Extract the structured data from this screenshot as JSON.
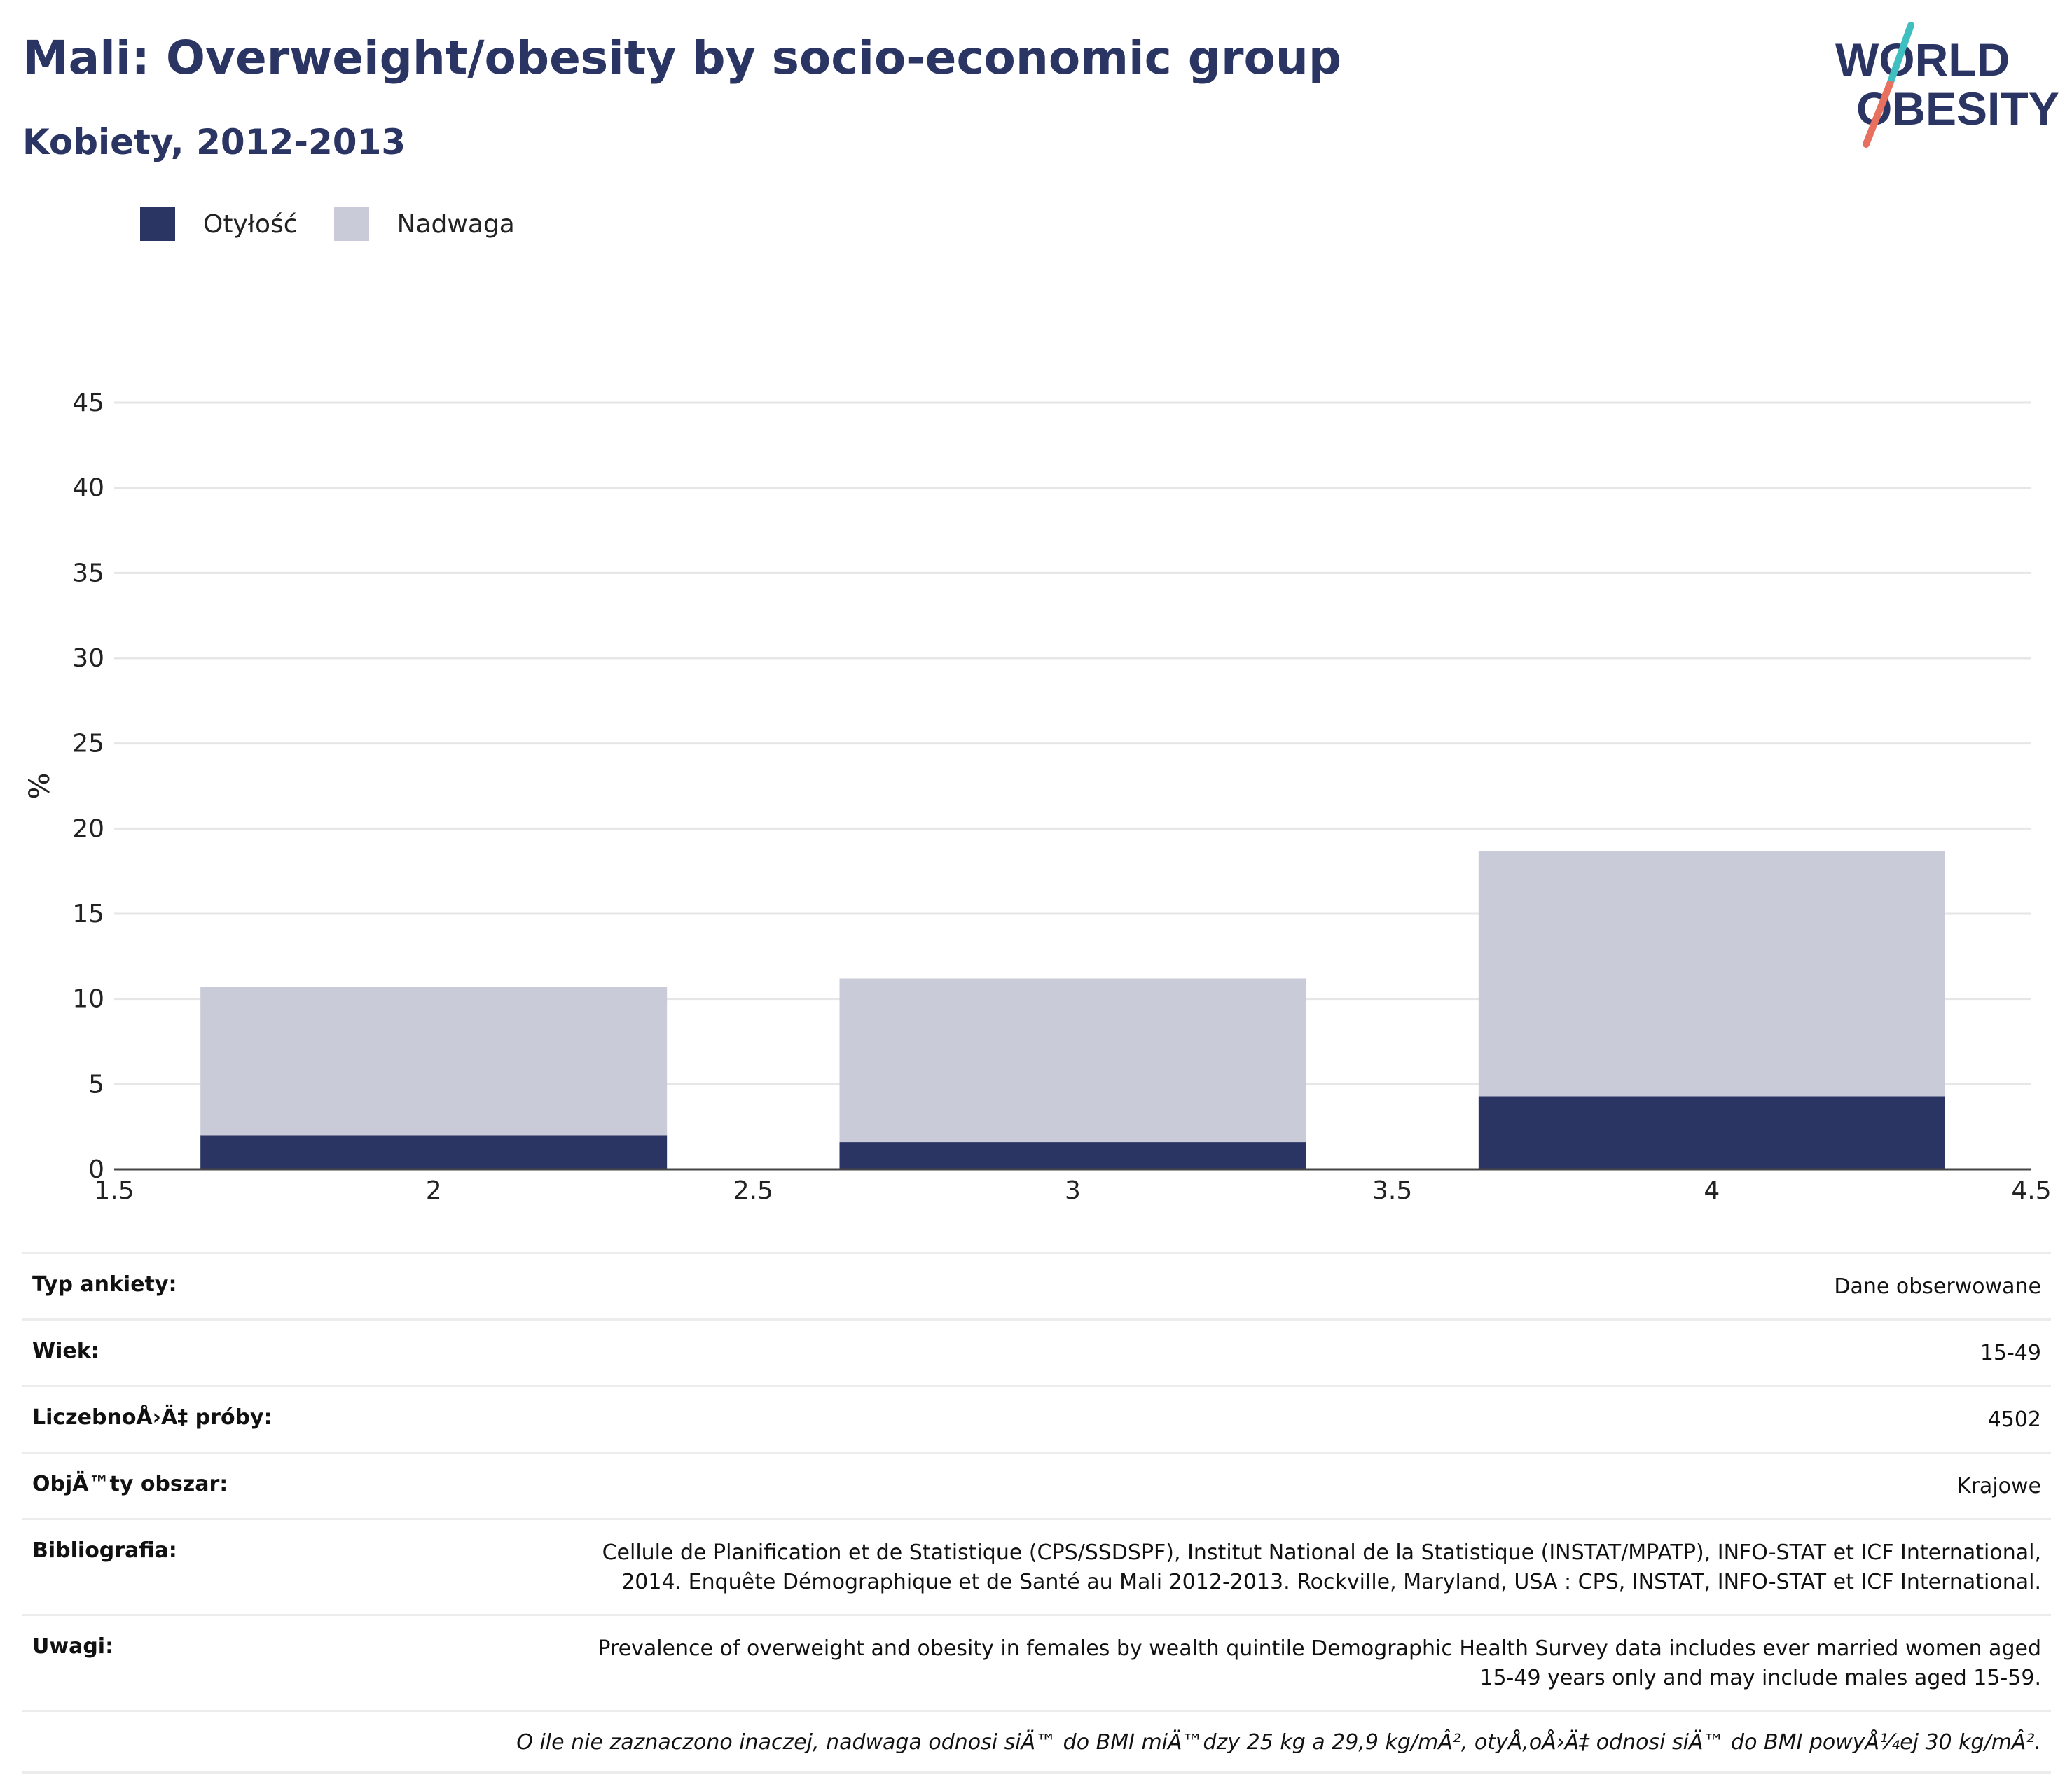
{
  "header": {
    "title": "Mali: Overweight/obesity by socio-economic group",
    "subtitle": "Kobiety, 2012-2013",
    "logo_line1": "WORLD",
    "logo_line2": "OBESITY"
  },
  "colors": {
    "obesity": "#2b3563",
    "overweight": "#c9ccd8",
    "title": "#2b3563",
    "logo_teal": "#3fbfc0",
    "logo_coral": "#e8705f"
  },
  "legend": [
    {
      "label": "Otyłość",
      "color": "#2b3563"
    },
    {
      "label": "Nadwaga",
      "color": "#c9ccd8"
    }
  ],
  "chart_data": {
    "type": "bar",
    "stacked": true,
    "x": [
      2,
      3,
      4
    ],
    "xlim": [
      1.5,
      4.5
    ],
    "xticks": [
      "1.5",
      "2",
      "2.5",
      "3",
      "3.5",
      "4",
      "4.5"
    ],
    "ylim": [
      0,
      45
    ],
    "yticks": [
      "0",
      "5",
      "10",
      "15",
      "20",
      "25",
      "30",
      "35",
      "40",
      "45"
    ],
    "ylabel": "%",
    "xlabel": "",
    "grid": true,
    "legend_position": "top-left",
    "series": [
      {
        "name": "Otyłość",
        "values": [
          2.0,
          1.6,
          4.3
        ]
      },
      {
        "name": "Nadwaga",
        "values": [
          8.7,
          9.6,
          14.4
        ]
      }
    ]
  },
  "meta": [
    {
      "label": "Typ ankiety:",
      "value": "Dane obserwowane"
    },
    {
      "label": "Wiek:",
      "value": "15-49"
    },
    {
      "label": "LiczebnoÅ›Ä‡ próby:",
      "value": "4502"
    },
    {
      "label": "ObjÄ™ty obszar:",
      "value": "Krajowe"
    },
    {
      "label": "Bibliografia:",
      "value": "Cellule de Planification et de Statistique (CPS/SSDSPF), Institut National de la Statistique (INSTAT/MPATP), INFO-STAT et ICF International, 2014. Enquête Démographique et de Santé au Mali 2012-2013. Rockville, Maryland, USA : CPS, INSTAT, INFO-STAT et ICF International."
    },
    {
      "label": "Uwagi:",
      "value": "Prevalence of overweight and obesity in females by wealth quintile Demographic Health Survey data includes ever married women aged 15-49 years only and may include males aged 15-59."
    }
  ],
  "footnote": "O ile nie zaznaczono inaczej, nadwaga odnosi siÄ™ do BMI miÄ™dzy 25 kg a 29,9 kg/mÂ², otyÅ‚oÅ›Ä‡ odnosi siÄ™ do BMI powyÅ¼ej 30 kg/mÂ²."
}
